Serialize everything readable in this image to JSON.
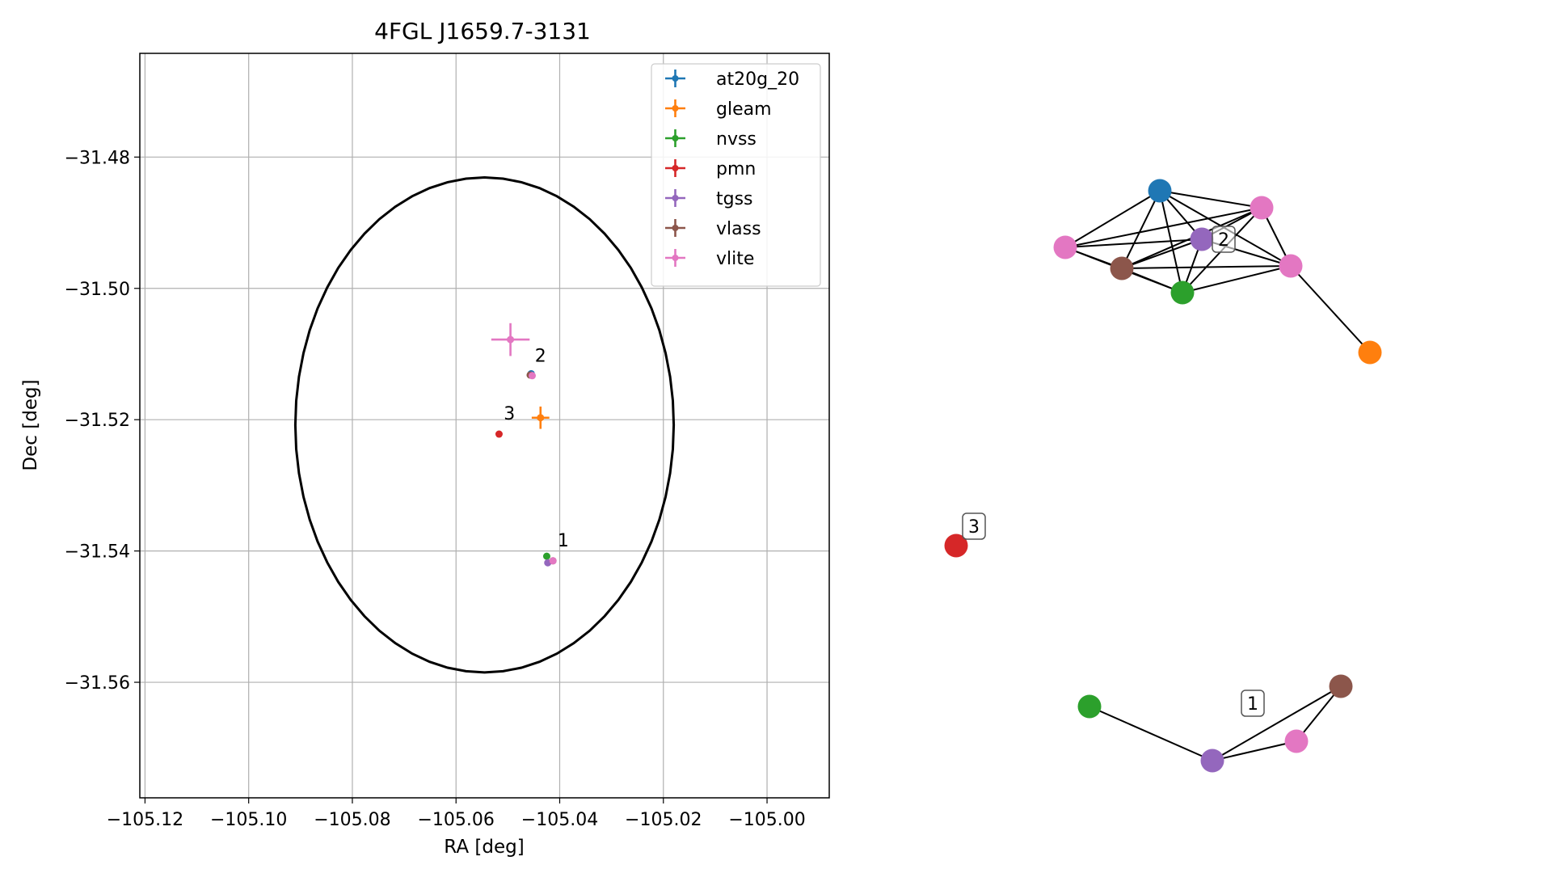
{
  "chart_data": [
    {
      "type": "scatter",
      "title": "4FGL J1659.7-3131",
      "xlabel": "RA [deg]",
      "ylabel": "Dec [deg]",
      "xlim": [
        -105.121,
        -104.988
      ],
      "ylim": [
        -31.5776,
        -31.4642
      ],
      "x_ticks": [
        -105.12,
        -105.1,
        -105.08,
        -105.06,
        -105.04,
        -105.02,
        -105.0
      ],
      "x_tick_labels": [
        "−105.12",
        "−105.10",
        "−105.08",
        "−105.06",
        "−105.04",
        "−105.02",
        "−105.00"
      ],
      "y_ticks": [
        -31.48,
        -31.5,
        -31.52,
        -31.54,
        -31.56
      ],
      "y_tick_labels": [
        "−31.48",
        "−31.50",
        "−31.52",
        "−31.54",
        "−31.56"
      ],
      "grid": true,
      "legend_position": "top-right",
      "ellipse": {
        "center": [
          -105.0545,
          -31.5208
        ],
        "semi_axis_ra": 0.0365,
        "semi_axis_dec": 0.0377,
        "color": "#000000"
      },
      "series": [
        {
          "name": "at20g_20",
          "color": "#1f77b4",
          "points": [
            {
              "x": -105.0455,
              "y": -31.513,
              "xerr": 0.0005,
              "yerr": 0.0003
            }
          ]
        },
        {
          "name": "gleam",
          "color": "#ff7f0e",
          "points": [
            {
              "x": -105.0437,
              "y": -31.5197,
              "xerr": 0.0017,
              "yerr": 0.0017
            }
          ]
        },
        {
          "name": "nvss",
          "color": "#2ca02c",
          "points": [
            {
              "x": -105.0425,
              "y": -31.5408,
              "xerr": 0.0003,
              "yerr": 0.0003
            }
          ]
        },
        {
          "name": "pmn",
          "color": "#d62728",
          "points": [
            {
              "x": -105.0517,
              "y": -31.5222,
              "xerr": 0,
              "yerr": 0
            }
          ]
        },
        {
          "name": "tgss",
          "color": "#9467bd",
          "points": [
            {
              "x": -105.0423,
              "y": -31.5418,
              "xerr": 0.0002,
              "yerr": 0.0002
            },
            {
              "x": -105.0455,
              "y": -31.5132,
              "xerr": 0.0002,
              "yerr": 0.0002
            }
          ]
        },
        {
          "name": "vlass",
          "color": "#8c564b",
          "points": [
            {
              "x": -105.0413,
              "y": -31.5415,
              "xerr": 0.0001,
              "yerr": 0.0001
            },
            {
              "x": -105.0457,
              "y": -31.5132,
              "xerr": 0.0001,
              "yerr": 0.0001
            }
          ]
        },
        {
          "name": "vlite",
          "color": "#e377c2",
          "points": [
            {
              "x": -105.0495,
              "y": -31.5078,
              "xerr": 0.0037,
              "yerr": 0.0025
            },
            {
              "x": -105.0453,
              "y": -31.5133,
              "xerr": 0.0004,
              "yerr": 0.0004
            },
            {
              "x": -105.0413,
              "y": -31.5415,
              "xerr": 0.0003,
              "yerr": 0.0003
            }
          ]
        }
      ],
      "annotations": [
        {
          "text": "1",
          "x": -105.0404,
          "y": -31.5393
        },
        {
          "text": "2",
          "x": -105.0448,
          "y": -31.5112
        },
        {
          "text": "3",
          "x": -105.0508,
          "y": -31.52
        }
      ]
    },
    {
      "type": "network",
      "nodes": [
        {
          "id": "n-blue",
          "color": "#1f77b4"
        },
        {
          "id": "n-pink-a",
          "color": "#e377c2"
        },
        {
          "id": "n-pink-b",
          "color": "#e377c2"
        },
        {
          "id": "n-purple-2",
          "color": "#9467bd"
        },
        {
          "id": "n-brown-2",
          "color": "#8c564b"
        },
        {
          "id": "n-green-2",
          "color": "#2ca02c"
        },
        {
          "id": "n-pink-c",
          "color": "#e377c2"
        },
        {
          "id": "n-orange",
          "color": "#ff7f0e"
        },
        {
          "id": "n-red",
          "color": "#d62728"
        },
        {
          "id": "n-green-1",
          "color": "#2ca02c"
        },
        {
          "id": "n-purple-1",
          "color": "#9467bd"
        },
        {
          "id": "n-pink-1",
          "color": "#e377c2"
        },
        {
          "id": "n-brown-1",
          "color": "#8c564b"
        }
      ],
      "edges": [
        [
          "n-blue",
          "n-pink-a"
        ],
        [
          "n-blue",
          "n-pink-b"
        ],
        [
          "n-blue",
          "n-purple-2"
        ],
        [
          "n-blue",
          "n-brown-2"
        ],
        [
          "n-blue",
          "n-green-2"
        ],
        [
          "n-blue",
          "n-pink-c"
        ],
        [
          "n-pink-a",
          "n-purple-2"
        ],
        [
          "n-pink-a",
          "n-brown-2"
        ],
        [
          "n-pink-a",
          "n-green-2"
        ],
        [
          "n-pink-a",
          "n-pink-b"
        ],
        [
          "n-purple-2",
          "n-brown-2"
        ],
        [
          "n-purple-2",
          "n-green-2"
        ],
        [
          "n-purple-2",
          "n-pink-c"
        ],
        [
          "n-purple-2",
          "n-pink-b"
        ],
        [
          "n-brown-2",
          "n-green-2"
        ],
        [
          "n-brown-2",
          "n-pink-b"
        ],
        [
          "n-brown-2",
          "n-pink-c"
        ],
        [
          "n-green-2",
          "n-pink-b"
        ],
        [
          "n-green-2",
          "n-pink-c"
        ],
        [
          "n-pink-b",
          "n-pink-c"
        ],
        [
          "n-pink-c",
          "n-orange"
        ],
        [
          "n-green-1",
          "n-purple-1"
        ],
        [
          "n-purple-1",
          "n-pink-1"
        ],
        [
          "n-purple-1",
          "n-brown-1"
        ],
        [
          "n-pink-1",
          "n-brown-1"
        ]
      ],
      "labels": [
        {
          "text": "2",
          "near": "n-purple-2"
        },
        {
          "text": "3",
          "near": "n-red"
        },
        {
          "text": "1",
          "near": "n-purple-1"
        }
      ]
    }
  ]
}
